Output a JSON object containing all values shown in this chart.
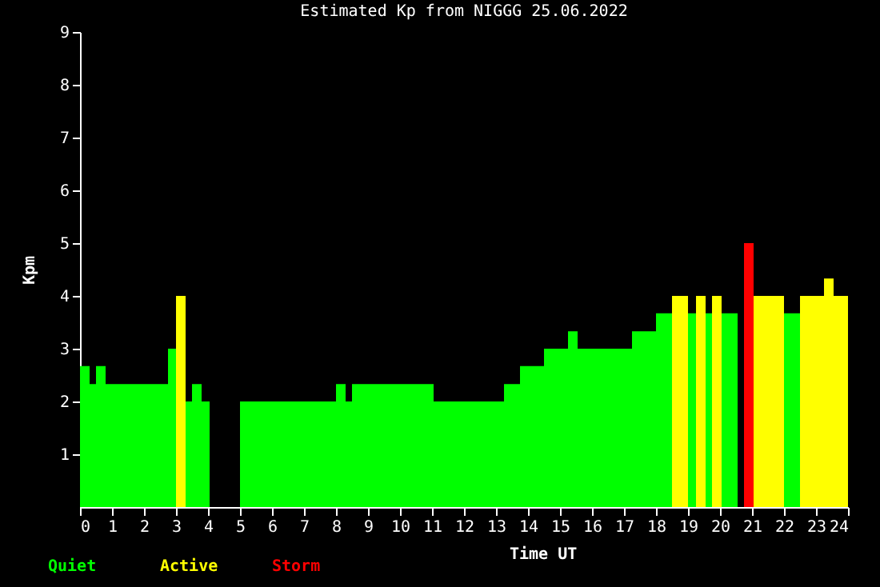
{
  "chart_data": {
    "type": "histogram",
    "title": "Estimated Kp from NIGGG 25.06.2022",
    "xlabel": "Time UT",
    "ylabel": "Kpm",
    "bins": [
      0,
      0.3,
      0.5,
      0.8,
      2.75,
      3.0,
      3.3,
      3.5,
      3.8,
      4.05,
      5.0,
      8.0,
      8.3,
      8.5,
      11.05,
      13.25,
      13.75,
      14.5,
      15.25,
      15.55,
      17.25,
      18.0,
      18.5,
      19.0,
      19.25,
      19.55,
      19.75,
      20.05,
      20.55,
      20.75,
      21.05,
      22.0,
      22.5,
      23.25,
      23.55,
      24
    ],
    "series": [
      {
        "name": "Quiet",
        "color": "#00ff00",
        "values": [
          2.67,
          2.33,
          2.67,
          2.33,
          3,
          null,
          2,
          2.33,
          2,
          null,
          2,
          2.33,
          2,
          2.33,
          2,
          2.33,
          2.67,
          3,
          3.33,
          3,
          3.33,
          3.67,
          null,
          3.67,
          null,
          3.67,
          null,
          3.67,
          null,
          null,
          null,
          3.67,
          null,
          null,
          null
        ]
      },
      {
        "name": "Active",
        "color": "#ffff00",
        "values": [
          null,
          null,
          null,
          null,
          null,
          4,
          null,
          null,
          null,
          null,
          null,
          null,
          null,
          null,
          null,
          null,
          null,
          null,
          null,
          null,
          null,
          null,
          4,
          null,
          4,
          null,
          4,
          null,
          null,
          null,
          4,
          null,
          4,
          4.33,
          4
        ]
      },
      {
        "name": "Storm",
        "color": "#ff0000",
        "values": [
          null,
          null,
          null,
          null,
          null,
          null,
          null,
          null,
          null,
          null,
          null,
          null,
          null,
          null,
          null,
          null,
          null,
          null,
          null,
          null,
          null,
          null,
          null,
          null,
          null,
          null,
          null,
          null,
          null,
          5,
          null,
          null,
          null,
          null,
          null
        ]
      }
    ],
    "xlim": [
      0,
      24
    ],
    "xticks": [
      0,
      1,
      2,
      3,
      4,
      5,
      6,
      7,
      8,
      9,
      10,
      11,
      12,
      13,
      14,
      15,
      16,
      17,
      18,
      19,
      20,
      21,
      22,
      23,
      24
    ],
    "ylim": [
      0,
      9
    ],
    "yticks": [
      1,
      2,
      3,
      4,
      5,
      6,
      7,
      8,
      9
    ],
    "grid": false,
    "legend": "bottom left"
  }
}
